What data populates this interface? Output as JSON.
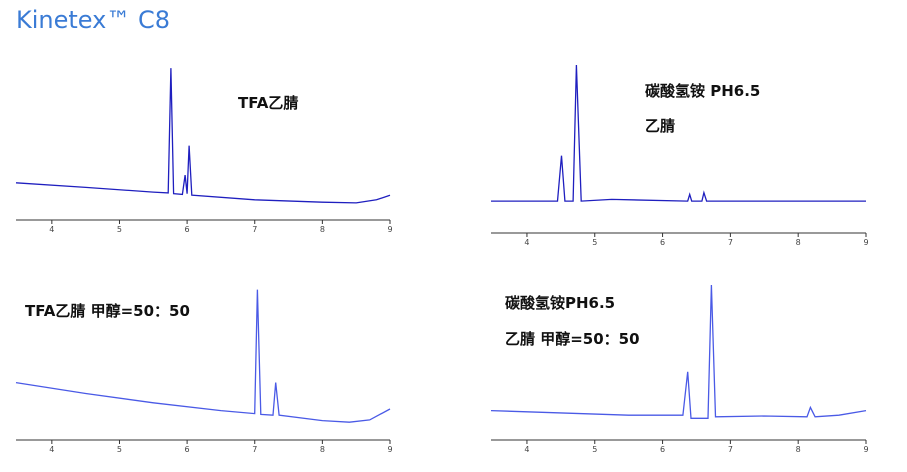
{
  "title": "Kinetex™ C8",
  "chart_data": [
    {
      "type": "line",
      "annotations": [
        "TFA乙腈"
      ],
      "color": "#1f1fbf",
      "x": [
        3.47,
        4.5,
        5.5,
        5.72,
        5.76,
        5.8,
        5.93,
        5.97,
        6.0,
        6.03,
        6.07,
        7,
        8,
        8.5,
        8.8,
        9
      ],
      "values": [
        24,
        21,
        18,
        17.5,
        98,
        17,
        16.5,
        29,
        17,
        48,
        16,
        13,
        11.5,
        11,
        13,
        16
      ],
      "xlim": [
        3.47,
        9
      ],
      "ylim": [
        0,
        100
      ],
      "xticks": [
        4,
        5,
        6,
        7,
        8,
        9
      ]
    },
    {
      "type": "line",
      "annotations": [
        "碳酸氢铵 PH6.5",
        "乙腈"
      ],
      "color": "#1f1fbf",
      "x": [
        3.47,
        4.45,
        4.51,
        4.56,
        4.68,
        4.73,
        4.8,
        5.25,
        6.37,
        6.4,
        6.43,
        6.58,
        6.61,
        6.65,
        9
      ],
      "values": [
        19,
        19,
        46,
        19,
        19,
        100,
        19,
        20,
        19,
        23,
        19,
        19,
        24,
        19,
        19
      ],
      "xlim": [
        3.47,
        9
      ],
      "ylim": [
        0,
        100
      ],
      "xticks": [
        4,
        5,
        6,
        7,
        8,
        9
      ]
    },
    {
      "type": "line",
      "annotations": [
        "TFA乙腈 甲醇=50：50"
      ],
      "color": "#4a5ae6",
      "x": [
        3.47,
        4.5,
        5.5,
        6.5,
        7.0,
        7.04,
        7.09,
        7.27,
        7.31,
        7.36,
        8,
        8.4,
        8.7,
        9
      ],
      "values": [
        37,
        30,
        24,
        19,
        17,
        97,
        16.5,
        16,
        37,
        16,
        12.5,
        11.5,
        13,
        20
      ],
      "xlim": [
        3.47,
        9
      ],
      "ylim": [
        0,
        100
      ],
      "xticks": [
        4,
        5,
        6,
        7,
        8,
        9
      ]
    },
    {
      "type": "line",
      "annotations": [
        "碳酸氢铵PH6.5",
        "乙腈 甲醇=50：50"
      ],
      "color": "#4a5ae6",
      "x": [
        3.47,
        5.5,
        6.3,
        6.37,
        6.42,
        6.67,
        6.72,
        6.78,
        7.5,
        8.13,
        8.18,
        8.25,
        8.6,
        9
      ],
      "values": [
        19,
        16,
        16,
        44,
        14,
        14,
        100,
        15,
        15.5,
        15,
        21,
        15,
        16,
        19
      ],
      "xlim": [
        3.47,
        9
      ],
      "ylim": [
        0,
        100
      ],
      "xticks": [
        4,
        5,
        6,
        7,
        8,
        9
      ]
    }
  ]
}
